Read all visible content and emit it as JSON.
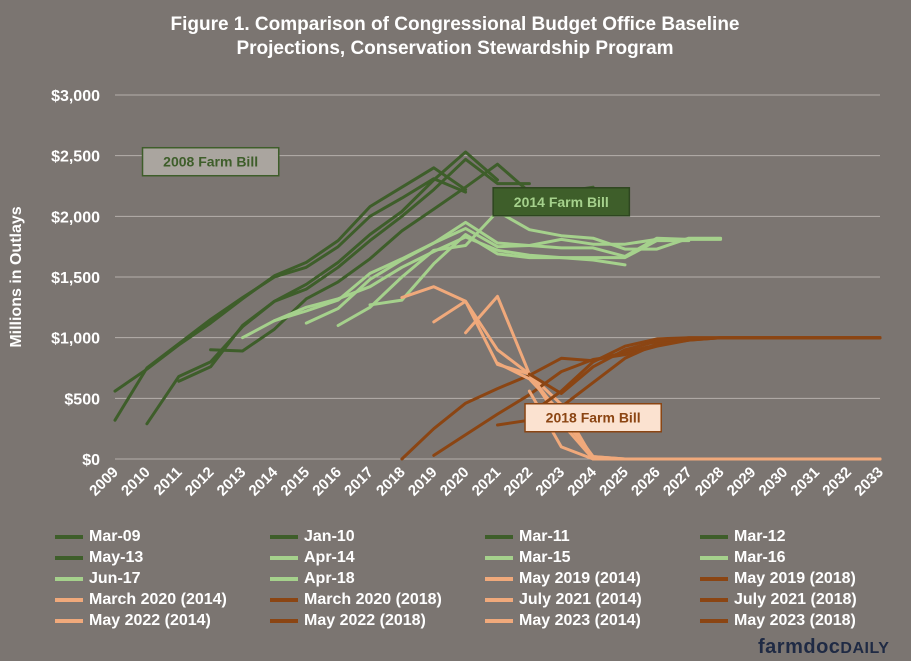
{
  "chart_data": {
    "type": "line",
    "title": "Figure 1. Comparison of Congressional Budget Office Baseline Projections, Conservation Stewardship Program",
    "title_lines": [
      "Figure 1. Comparison of Congressional Budget Office Baseline",
      "Projections, Conservation Stewardship Program"
    ],
    "ylabel": "Millions in Outlays",
    "xlabel": "",
    "ylim": [
      0,
      3000
    ],
    "yticks": [
      0,
      500,
      1000,
      1500,
      2000,
      2500,
      3000
    ],
    "ytick_labels": [
      "$0",
      "$500",
      "$1,000",
      "$1,500",
      "$2,000",
      "$2,500",
      "$3,000"
    ],
    "x_categories": [
      "2009",
      "2010",
      "2011",
      "2012",
      "2013",
      "2014",
      "2015",
      "2016",
      "2017",
      "2018",
      "2019",
      "2020",
      "2021",
      "2022",
      "2023",
      "2024",
      "2025",
      "2026",
      "2027",
      "2028",
      "2029",
      "2030",
      "2031",
      "2032",
      "2033"
    ],
    "grid": true,
    "legend_position": "bottom",
    "colors": {
      "farm_2008": "#3e5e2a",
      "farm_2014": "#a5d18c",
      "farm_2018_a": "#f0a97b",
      "farm_2018_b": "#8b4513",
      "background": "#7b7571",
      "grid": "#b5b0ac"
    },
    "annotations": [
      {
        "text": "2008 Farm Bill",
        "x": "2012",
        "y": 2450,
        "style": "farm_2008"
      },
      {
        "text": "2014 Farm Bill",
        "x": "2023",
        "y": 2120,
        "style": "farm_2014"
      },
      {
        "text": "2018 Farm Bill",
        "x": "2024",
        "y": 340,
        "style": "farm_2018"
      }
    ],
    "series": [
      {
        "name": "Mar-09",
        "color": "#3e5e2a",
        "start": "2009",
        "values": [
          320,
          750,
          950,
          1150,
          1330,
          1500,
          1580,
          1750,
          2000,
          2150,
          2310,
          2200
        ]
      },
      {
        "name": "Jan-10",
        "color": "#3e5e2a",
        "start": "2009",
        "values": [
          560,
          740,
          940,
          1120,
          1320,
          1510,
          1620,
          1800,
          2080,
          2240,
          2400,
          2220
        ]
      },
      {
        "name": "Mar-11",
        "color": "#3e5e2a",
        "start": "2010",
        "values": [
          290,
          680,
          800,
          1090,
          1300,
          1440,
          1620,
          1850,
          2040,
          2300,
          2530,
          2300
        ]
      },
      {
        "name": "Mar-12",
        "color": "#3e5e2a",
        "start": "2011",
        "values": [
          640,
          760,
          1100,
          1300,
          1400,
          1580,
          1800,
          2000,
          2220,
          2470,
          2270,
          2270
        ]
      },
      {
        "name": "May-13",
        "color": "#3e5e2a",
        "start": "2012",
        "values": [
          900,
          890,
          1070,
          1320,
          1460,
          1650,
          1880,
          2060,
          2240,
          2430,
          2200,
          2200,
          2240
        ]
      },
      {
        "name": "Apr-14",
        "color": "#a5d18c",
        "start": "2013",
        "values": [
          1000,
          1140,
          1250,
          1320,
          1420,
          1580,
          1710,
          1830,
          1720,
          1680,
          1660,
          1640,
          1600
        ]
      },
      {
        "name": "Mar-15",
        "color": "#a5d18c",
        "start": "2014",
        "values": [
          1140,
          1220,
          1310,
          1530,
          1650,
          1780,
          1900,
          1750,
          1760,
          1810,
          1770,
          1770,
          1810
        ]
      },
      {
        "name": "Mar-16",
        "color": "#a5d18c",
        "start": "2015",
        "values": [
          1120,
          1240,
          1480,
          1640,
          1780,
          1950,
          1780,
          1760,
          1740,
          1740,
          1670,
          1820,
          1810,
          1810
        ]
      },
      {
        "name": "Jun-17",
        "color": "#a5d18c",
        "start": "2016",
        "values": [
          1100,
          1250,
          1500,
          1720,
          1760,
          2040,
          1890,
          1840,
          1820,
          1730,
          1730,
          1820,
          1820
        ]
      },
      {
        "name": "Apr-18",
        "color": "#a5d18c",
        "start": "2017",
        "values": [
          1270,
          1310,
          1610,
          1850,
          1690,
          1660,
          1660,
          1660,
          1660,
          1800,
          1800
        ]
      },
      {
        "name": "May 2019 (2014)",
        "color": "#f0a97b",
        "start": "2018",
        "values": [
          1330,
          1420,
          1300,
          900,
          700,
          300,
          0,
          0,
          0,
          0,
          0,
          0,
          0,
          0,
          0,
          0
        ]
      },
      {
        "name": "May 2019 (2018)",
        "color": "#8b4513",
        "start": "2018",
        "values": [
          0,
          250,
          460,
          580,
          690,
          830,
          810,
          880,
          940,
          980,
          1000,
          1000,
          1000,
          1000,
          1000,
          1000
        ]
      },
      {
        "name": "March 2020 (2014)",
        "color": "#f0a97b",
        "start": "2019",
        "values": [
          1130,
          1300,
          780,
          700,
          450,
          0,
          0,
          0,
          0,
          0,
          0,
          0,
          0,
          0,
          0
        ]
      },
      {
        "name": "March 2020 (2018)",
        "color": "#8b4513",
        "start": "2019",
        "values": [
          30,
          200,
          370,
          530,
          720,
          820,
          860,
          930,
          980,
          1000,
          1000,
          1000,
          1000,
          1000,
          1000
        ]
      },
      {
        "name": "July 2021 (2014)",
        "color": "#f0a97b",
        "start": "2020",
        "values": [
          1040,
          1340,
          700,
          350,
          20,
          0,
          0,
          0,
          0,
          0,
          0,
          0,
          0,
          0
        ]
      },
      {
        "name": "July 2021 (2018)",
        "color": "#8b4513",
        "start": "2021",
        "values": [
          280,
          320,
          430,
          630,
          830,
          950,
          990,
          1000,
          1000,
          1000,
          1000,
          1000,
          1000
        ]
      },
      {
        "name": "May 2022 (2014)",
        "color": "#f0a97b",
        "start": "2021",
        "values": [
          790,
          660,
          380,
          20,
          0,
          0,
          0,
          0,
          0,
          0,
          0,
          0,
          0
        ]
      },
      {
        "name": "May 2022 (2018)",
        "color": "#8b4513",
        "start": "2022",
        "values": [
          370,
          560,
          800,
          930,
          990,
          1000,
          1000,
          1000,
          1000,
          1000,
          1000,
          1000
        ]
      },
      {
        "name": "May 2023 (2014)",
        "color": "#f0a97b",
        "start": "2022",
        "values": [
          560,
          100,
          0,
          0,
          0,
          0,
          0,
          0,
          0,
          0,
          0,
          0
        ]
      },
      {
        "name": "May 2023 (2018)",
        "color": "#8b4513",
        "start": "2022",
        "values": [
          700,
          540,
          760,
          900,
          970,
          1000,
          1000,
          1000,
          1000,
          1000,
          1000,
          1000
        ]
      }
    ]
  },
  "brand": {
    "name": "farmdoc",
    "suffix": "DAILY"
  }
}
